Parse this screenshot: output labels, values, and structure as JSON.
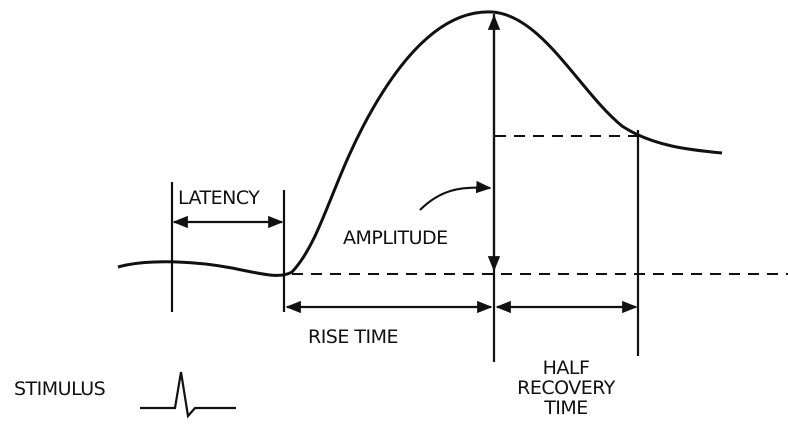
{
  "labels": {
    "latency": "LATENCY",
    "amplitude": "AMPLITUDE",
    "rise_time": "RISE TIME",
    "half_recovery_time": [
      "HALF",
      "RECOVERY",
      "TIME"
    ],
    "stimulus": "STIMULUS"
  }
}
